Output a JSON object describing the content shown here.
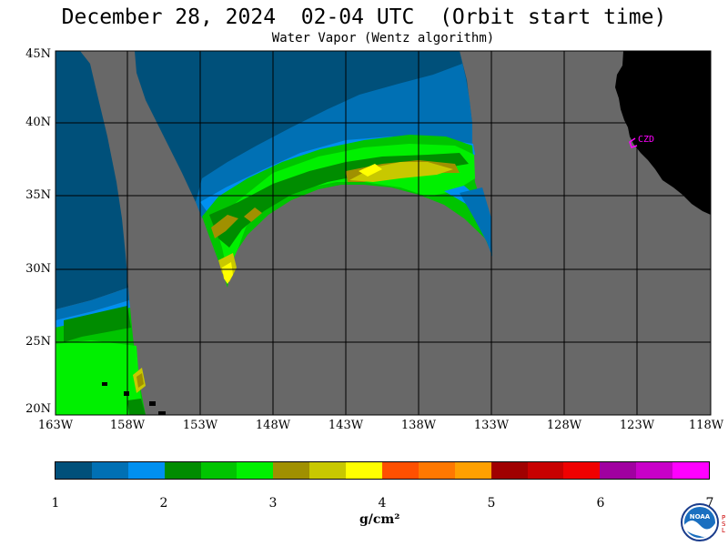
{
  "title": "December 28, 2024  02-04 UTC  (Orbit start time)",
  "subtitle": "Water Vapor (Wentz algorithm)",
  "map": {
    "lat_labels": [
      "45N",
      "40N",
      "35N",
      "30N",
      "25N",
      "20N"
    ],
    "lon_labels": [
      "163W",
      "158W",
      "153W",
      "148W",
      "143W",
      "138W",
      "133W",
      "128W",
      "123W",
      "118W"
    ],
    "station_label": "CZD",
    "colors": {
      "no_data": "#686868",
      "land": "#000000",
      "grid": "#000000",
      "station": "#ff00ff"
    }
  },
  "colorbar": {
    "colors": [
      "#00507a",
      "#0070b4",
      "#0090f0",
      "#008c00",
      "#00c400",
      "#00f000",
      "#a09000",
      "#c8c800",
      "#ffff00",
      "#ff5000",
      "#ff7800",
      "#ffa000",
      "#a00000",
      "#c80000",
      "#f00000",
      "#a000a0",
      "#c800c8",
      "#ff00ff"
    ],
    "tick_labels": [
      "1",
      "2",
      "3",
      "4",
      "5",
      "6",
      "7"
    ],
    "units": "g/cm²"
  },
  "logo": {
    "name": "NOAA",
    "side_text": "PSL"
  }
}
